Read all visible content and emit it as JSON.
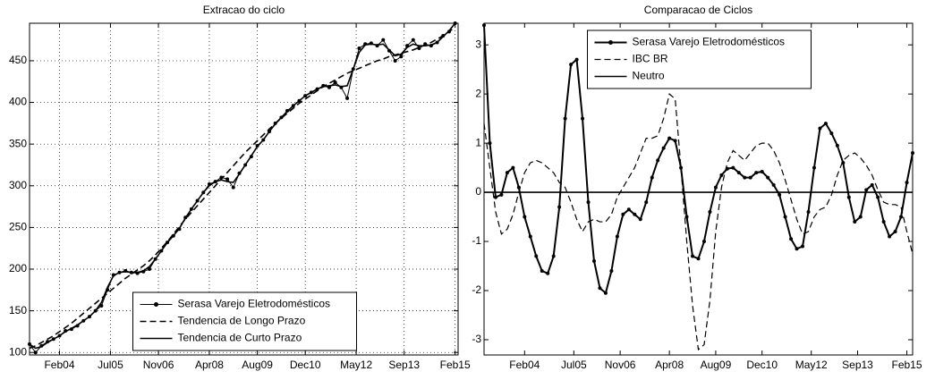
{
  "chart_data": [
    {
      "type": "line",
      "title": "Extracao do ciclo",
      "x": [
        "2003-04",
        "2003-06",
        "2003-08",
        "2003-10",
        "2003-12",
        "2004-02",
        "2004-04",
        "2004-06",
        "2004-08",
        "2004-10",
        "2004-12",
        "2005-02",
        "2005-04",
        "2005-06",
        "2005-08",
        "2005-10",
        "2005-12",
        "2006-02",
        "2006-04",
        "2006-06",
        "2006-08",
        "2006-10",
        "2006-12",
        "2007-02",
        "2007-04",
        "2007-06",
        "2007-08",
        "2007-10",
        "2007-12",
        "2008-02",
        "2008-04",
        "2008-06",
        "2008-08",
        "2008-10",
        "2008-12",
        "2009-02",
        "2009-04",
        "2009-06",
        "2009-08",
        "2009-10",
        "2009-12",
        "2010-02",
        "2010-04",
        "2010-06",
        "2010-08",
        "2010-10",
        "2010-12",
        "2011-02",
        "2011-04",
        "2011-06",
        "2011-08",
        "2011-10",
        "2011-12",
        "2012-02",
        "2012-04",
        "2012-06",
        "2012-08",
        "2012-10",
        "2012-12",
        "2013-02",
        "2013-04",
        "2013-06",
        "2013-08",
        "2013-10",
        "2013-12",
        "2014-02",
        "2014-04",
        "2014-06",
        "2014-08",
        "2014-10",
        "2014-12",
        "2015-02"
      ],
      "series": [
        {
          "name": "Serasa Varejo Eletrodomésticos",
          "color": "#000000",
          "linestyle": "solid",
          "marker": "circle",
          "linewidth": 1,
          "values": [
            110,
            100,
            108,
            113,
            116,
            120,
            126,
            128,
            132,
            138,
            143,
            150,
            156,
            175,
            193,
            196,
            198,
            196,
            195,
            197,
            200,
            212,
            222,
            232,
            240,
            248,
            262,
            272,
            282,
            292,
            302,
            305,
            310,
            308,
            298,
            315,
            325,
            335,
            348,
            355,
            365,
            375,
            382,
            390,
            396,
            402,
            408,
            412,
            416,
            420,
            418,
            424,
            418,
            405,
            440,
            465,
            470,
            471,
            468,
            475,
            462,
            450,
            455,
            468,
            475,
            465,
            470,
            468,
            472,
            480,
            485,
            495
          ]
        },
        {
          "name": "Tendencia de Longo Prazo",
          "color": "#000000",
          "linestyle": "dashed",
          "marker": "none",
          "linewidth": 1.6,
          "values": [
            105,
            108,
            112,
            116,
            120,
            125,
            130,
            135,
            141,
            147,
            153,
            159,
            165,
            171,
            177,
            183,
            189,
            194,
            199,
            204,
            210,
            217,
            225,
            233,
            242,
            251,
            260,
            268,
            276,
            284,
            292,
            300,
            308,
            316,
            324,
            332,
            340,
            347,
            354,
            361,
            368,
            375,
            381,
            387,
            393,
            399,
            404,
            409,
            414,
            419,
            423,
            427,
            431,
            435,
            438,
            441,
            444,
            447,
            450,
            452,
            455,
            457,
            459,
            461,
            463,
            466,
            469,
            472,
            476,
            480,
            485,
            490
          ]
        },
        {
          "name": "Tendencia de Curto Prazo",
          "color": "#000000",
          "linestyle": "solid",
          "marker": "none",
          "linewidth": 1.6,
          "values": [
            110,
            105,
            107,
            112,
            116,
            120,
            125,
            129,
            133,
            138,
            143,
            150,
            160,
            178,
            192,
            196,
            197,
            196,
            196,
            198,
            203,
            212,
            222,
            232,
            240,
            249,
            261,
            272,
            282,
            292,
            300,
            305,
            307,
            305,
            304,
            314,
            325,
            336,
            347,
            355,
            365,
            374,
            382,
            389,
            396,
            402,
            408,
            412,
            416,
            419,
            420,
            421,
            419,
            420,
            440,
            460,
            469,
            470,
            469,
            470,
            463,
            456,
            458,
            466,
            470,
            468,
            468,
            469,
            472,
            479,
            486,
            495
          ]
        }
      ],
      "xlim": [
        "2003-04",
        "2015-03"
      ],
      "xticks": [
        {
          "value": "2004-02",
          "label": "Feb04"
        },
        {
          "value": "2005-07",
          "label": "Jul05"
        },
        {
          "value": "2006-11",
          "label": "Nov06"
        },
        {
          "value": "2008-04",
          "label": "Apr08"
        },
        {
          "value": "2009-08",
          "label": "Aug09"
        },
        {
          "value": "2010-12",
          "label": "Dec10"
        },
        {
          "value": "2012-05",
          "label": "May12"
        },
        {
          "value": "2013-09",
          "label": "Sep13"
        },
        {
          "value": "2015-02",
          "label": "Feb15"
        }
      ],
      "ylim": [
        97,
        495
      ],
      "yticks": [
        100,
        150,
        200,
        250,
        300,
        350,
        400,
        450
      ],
      "grid": true,
      "legend": "lower center"
    },
    {
      "type": "line",
      "title": "Comparacao de Ciclos",
      "x": [
        "2002-12",
        "2003-02",
        "2003-04",
        "2003-06",
        "2003-08",
        "2003-10",
        "2003-12",
        "2004-02",
        "2004-04",
        "2004-06",
        "2004-08",
        "2004-10",
        "2004-12",
        "2005-02",
        "2005-04",
        "2005-06",
        "2005-08",
        "2005-10",
        "2005-12",
        "2006-02",
        "2006-04",
        "2006-06",
        "2006-08",
        "2006-10",
        "2006-12",
        "2007-02",
        "2007-04",
        "2007-06",
        "2007-08",
        "2007-10",
        "2007-12",
        "2008-02",
        "2008-04",
        "2008-06",
        "2008-08",
        "2008-10",
        "2008-12",
        "2009-02",
        "2009-04",
        "2009-06",
        "2009-08",
        "2009-10",
        "2009-12",
        "2010-02",
        "2010-04",
        "2010-06",
        "2010-08",
        "2010-10",
        "2010-12",
        "2011-02",
        "2011-04",
        "2011-06",
        "2011-08",
        "2011-10",
        "2011-12",
        "2012-02",
        "2012-04",
        "2012-06",
        "2012-08",
        "2012-10",
        "2012-12",
        "2013-02",
        "2013-04",
        "2013-06",
        "2013-08",
        "2013-10",
        "2013-12",
        "2014-02",
        "2014-04",
        "2014-06",
        "2014-08",
        "2014-10",
        "2014-12",
        "2015-02",
        "2015-04"
      ],
      "series": [
        {
          "name": "Serasa Varejo Eletrodomésticos",
          "color": "#000000",
          "linestyle": "solid",
          "marker": "circle",
          "linewidth": 2,
          "values": [
            3.4,
            1.0,
            -0.1,
            -0.05,
            0.4,
            0.5,
            0.1,
            -0.5,
            -0.9,
            -1.3,
            -1.6,
            -1.65,
            -1.3,
            -0.3,
            1.5,
            2.6,
            2.7,
            1.5,
            -0.2,
            -1.4,
            -1.95,
            -2.05,
            -1.6,
            -0.9,
            -0.45,
            -0.35,
            -0.45,
            -0.55,
            -0.2,
            0.3,
            0.65,
            0.9,
            1.1,
            1.05,
            0.5,
            -0.5,
            -1.3,
            -1.35,
            -1.0,
            -0.4,
            0.1,
            0.35,
            0.48,
            0.5,
            0.4,
            0.3,
            0.3,
            0.4,
            0.42,
            0.3,
            0.15,
            -0.05,
            -0.5,
            -0.95,
            -1.15,
            -1.1,
            -0.4,
            0.5,
            1.3,
            1.4,
            1.2,
            0.95,
            0.6,
            -0.1,
            -0.6,
            -0.5,
            0.05,
            0.15,
            -0.1,
            -0.6,
            -0.9,
            -0.8,
            -0.5,
            0.2,
            0.8
          ]
        },
        {
          "name": "IBC BR",
          "color": "#000000",
          "linestyle": "dashed",
          "marker": "none",
          "linewidth": 1.2,
          "values": [
            1.4,
            0.5,
            -0.4,
            -0.85,
            -0.75,
            -0.45,
            0,
            0.4,
            0.6,
            0.65,
            0.6,
            0.5,
            0.4,
            0.2,
            0.1,
            -0.2,
            -0.55,
            -0.8,
            -0.6,
            -0.55,
            -0.6,
            -0.6,
            -0.45,
            -0.1,
            0.1,
            0.3,
            0.5,
            0.8,
            1.1,
            1.1,
            1.15,
            1.5,
            2.0,
            1.9,
            0.5,
            -1.0,
            -2.3,
            -3.2,
            -3.1,
            -2.2,
            -0.8,
            0.1,
            0.6,
            0.85,
            0.75,
            0.65,
            0.8,
            0.95,
            1.0,
            1.0,
            0.85,
            0.6,
            0.25,
            -0.15,
            -0.55,
            -0.85,
            -0.8,
            -0.5,
            -0.35,
            -0.3,
            -0.05,
            0.35,
            0.65,
            0.75,
            0.8,
            0.7,
            0.55,
            0.35,
            0.05,
            -0.2,
            -0.25,
            -0.25,
            -0.3,
            -0.8,
            -1.25
          ]
        },
        {
          "name": "Neutro",
          "color": "#000000",
          "linestyle": "solid",
          "marker": "none",
          "linewidth": 1.6,
          "x": [
            "2002-12",
            "2015-04"
          ],
          "values": [
            0,
            0
          ]
        }
      ],
      "xlim": [
        "2002-12",
        "2015-04"
      ],
      "xticks": [
        {
          "value": "2004-02",
          "label": "Feb04"
        },
        {
          "value": "2005-07",
          "label": "Jul05"
        },
        {
          "value": "2006-11",
          "label": "Nov06"
        },
        {
          "value": "2008-04",
          "label": "Apr08"
        },
        {
          "value": "2009-08",
          "label": "Aug09"
        },
        {
          "value": "2010-12",
          "label": "Dec10"
        },
        {
          "value": "2012-05",
          "label": "May12"
        },
        {
          "value": "2013-09",
          "label": "Sep13"
        },
        {
          "value": "2015-02",
          "label": "Feb15"
        }
      ],
      "ylim": [
        -3.31,
        3.44
      ],
      "yticks": [
        -3,
        -2,
        -1,
        0,
        1,
        2,
        3
      ],
      "grid": false,
      "legend": "upper center"
    }
  ]
}
